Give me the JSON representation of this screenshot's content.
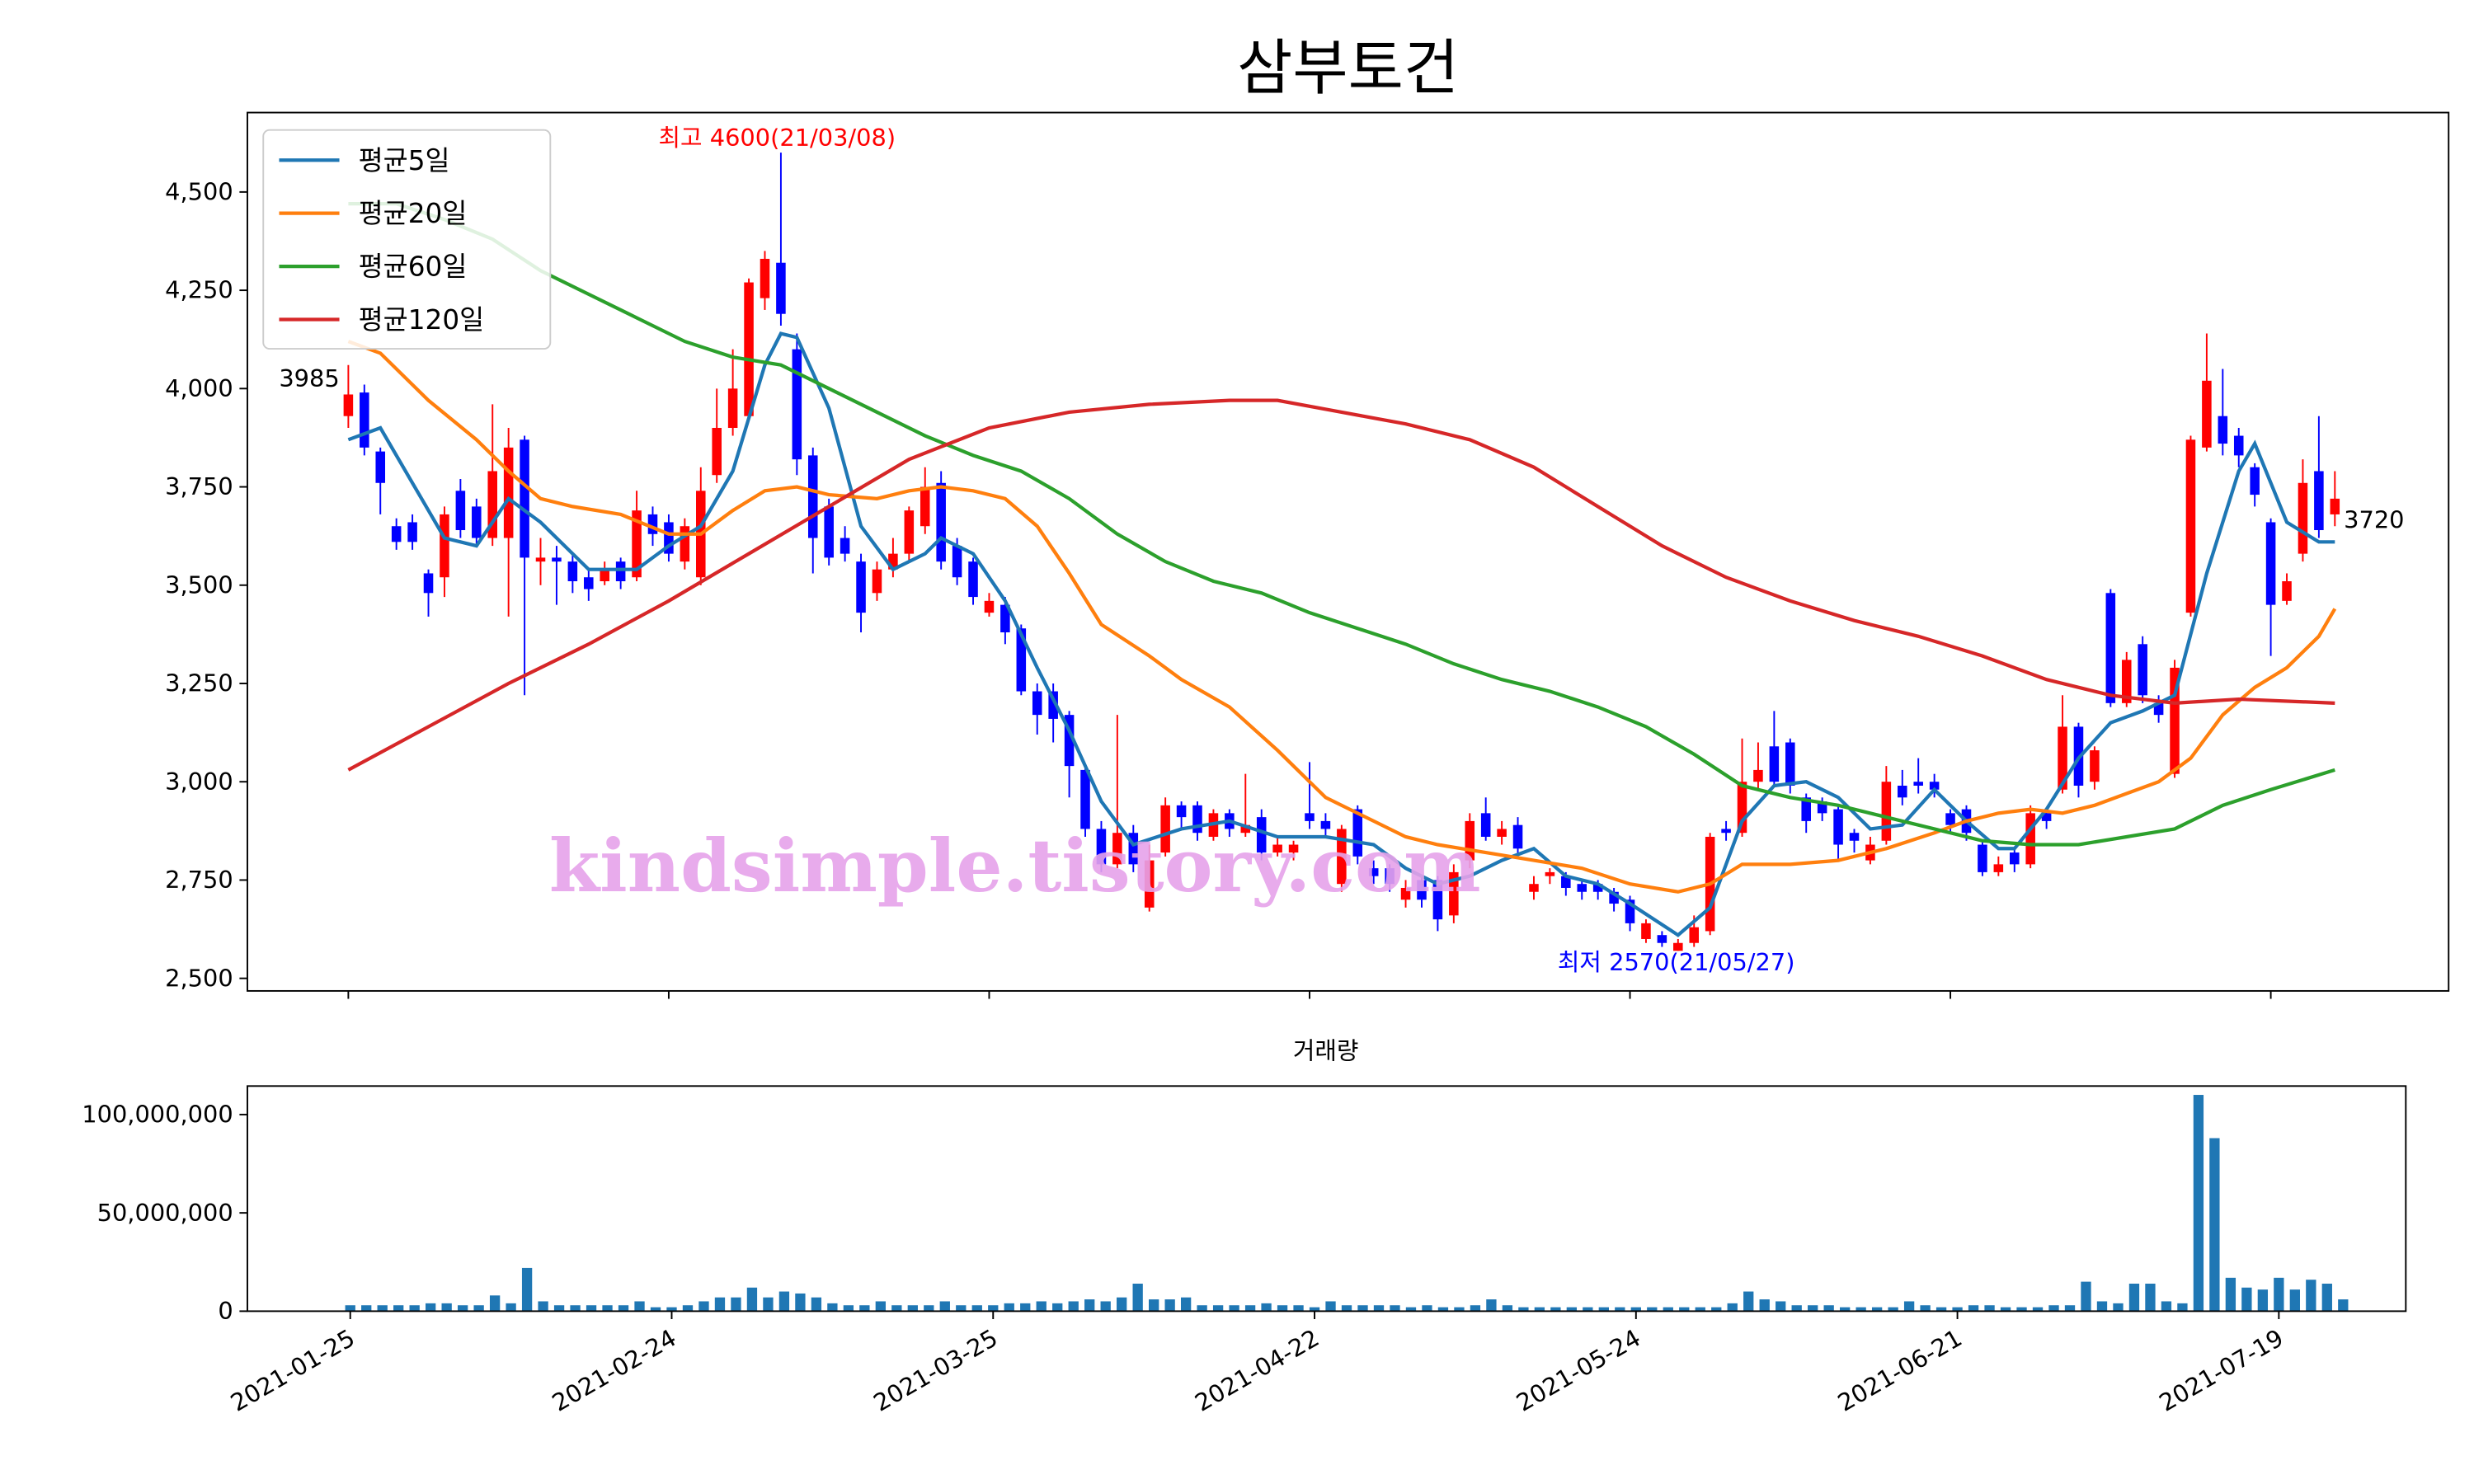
{
  "watermark": "kindsimple.tistory.com",
  "chart_data": [
    {
      "type": "candlestick",
      "title": "삼부토건",
      "up_color": "#ff0000",
      "down_color": "#0000ff",
      "open": [
        3930,
        3990,
        3840,
        3650,
        3660,
        3530,
        3520,
        3740,
        3700,
        3620,
        3620,
        3870,
        3560,
        3570,
        3560,
        3520,
        3510,
        3560,
        3520,
        3680,
        3660,
        3560,
        3520,
        3780,
        3900,
        3930,
        4230,
        4320,
        4100,
        3830,
        3700,
        3620,
        3560,
        3480,
        3540,
        3580,
        3650,
        3760,
        3600,
        3560,
        3430,
        3450,
        3390,
        3230,
        3230,
        3170,
        3030,
        2880,
        2790,
        2870,
        2680,
        2820,
        2940,
        2940,
        2860,
        2920,
        2870,
        2910,
        2820,
        2820,
        2920,
        2900,
        2740,
        2930,
        2780,
        2780,
        2700,
        2750,
        2750,
        2660,
        2800,
        2920,
        2860,
        2890,
        2720,
        2760,
        2760,
        2740,
        2740,
        2720,
        2700,
        2600,
        2610,
        2570,
        2590,
        2620,
        2880,
        2870,
        3000,
        3090,
        3100,
        2960,
        2950,
        2930,
        2870,
        2800,
        2850,
        2990,
        3000,
        3000,
        2920,
        2930,
        2840,
        2770,
        2820,
        2790,
        2920,
        2980,
        3140,
        3000,
        3480,
        3200,
        3350,
        3200,
        3020,
        3430,
        3850,
        3930,
        3880,
        3800,
        3660,
        3460,
        3580,
        3790,
        3680
      ],
      "high": [
        4060,
        4010,
        3850,
        3670,
        3680,
        3540,
        3700,
        3770,
        3720,
        3960,
        3900,
        3880,
        3620,
        3600,
        3580,
        3540,
        3560,
        3570,
        3740,
        3700,
        3680,
        3670,
        3800,
        4000,
        4100,
        4280,
        4350,
        4600,
        4140,
        3850,
        3720,
        3650,
        3580,
        3560,
        3620,
        3700,
        3800,
        3790,
        3620,
        3570,
        3480,
        3470,
        3400,
        3250,
        3250,
        3180,
        3040,
        2900,
        3170,
        2890,
        2840,
        2960,
        2950,
        2950,
        2930,
        2930,
        3020,
        2930,
        2860,
        2850,
        3050,
        2920,
        2890,
        2940,
        2800,
        2790,
        2750,
        2760,
        2760,
        2790,
        2920,
        2960,
        2900,
        2910,
        2760,
        2780,
        2770,
        2750,
        2750,
        2730,
        2710,
        2650,
        2620,
        2600,
        2660,
        2870,
        2900,
        3110,
        3100,
        3180,
        3110,
        2970,
        2960,
        2940,
        2880,
        2860,
        3040,
        3030,
        3060,
        3020,
        2930,
        2940,
        2850,
        2810,
        2830,
        2940,
        2930,
        3220,
        3150,
        3090,
        3490,
        3330,
        3370,
        3220,
        3310,
        3880,
        4140,
        4050,
        3900,
        3810,
        3670,
        3530,
        3820,
        3930,
        3790
      ],
      "low": [
        3900,
        3830,
        3680,
        3590,
        3590,
        3420,
        3470,
        3620,
        3600,
        3600,
        3420,
        3220,
        3500,
        3450,
        3480,
        3460,
        3500,
        3490,
        3510,
        3600,
        3560,
        3540,
        3500,
        3760,
        3880,
        3920,
        4200,
        4160,
        3780,
        3530,
        3550,
        3560,
        3380,
        3460,
        3520,
        3560,
        3630,
        3540,
        3500,
        3450,
        3420,
        3350,
        3220,
        3120,
        3100,
        2960,
        2860,
        2770,
        2780,
        2770,
        2670,
        2810,
        2880,
        2850,
        2850,
        2860,
        2860,
        2800,
        2810,
        2800,
        2880,
        2860,
        2720,
        2790,
        2740,
        2720,
        2680,
        2680,
        2620,
        2640,
        2780,
        2850,
        2840,
        2810,
        2700,
        2740,
        2710,
        2700,
        2700,
        2670,
        2620,
        2590,
        2580,
        2570,
        2580,
        2610,
        2850,
        2860,
        2980,
        2990,
        2970,
        2870,
        2900,
        2800,
        2820,
        2790,
        2840,
        2940,
        2970,
        2960,
        2870,
        2850,
        2760,
        2760,
        2770,
        2780,
        2880,
        2970,
        2960,
        2980,
        3190,
        3190,
        3200,
        3150,
        3010,
        3420,
        3840,
        3830,
        3800,
        3700,
        3320,
        3450,
        3560,
        3620,
        3650
      ],
      "close": [
        3985,
        3850,
        3760,
        3610,
        3610,
        3480,
        3680,
        3640,
        3620,
        3790,
        3850,
        3570,
        3570,
        3560,
        3510,
        3490,
        3540,
        3510,
        3690,
        3630,
        3580,
        3650,
        3740,
        3900,
        4000,
        4270,
        4330,
        4190,
        3820,
        3620,
        3570,
        3580,
        3430,
        3540,
        3580,
        3690,
        3750,
        3560,
        3520,
        3470,
        3460,
        3380,
        3230,
        3170,
        3160,
        3040,
        2880,
        2790,
        2870,
        2790,
        2800,
        2940,
        2910,
        2870,
        2920,
        2880,
        2890,
        2820,
        2840,
        2840,
        2900,
        2880,
        2880,
        2810,
        2760,
        2740,
        2730,
        2700,
        2650,
        2770,
        2900,
        2860,
        2880,
        2830,
        2740,
        2770,
        2730,
        2720,
        2720,
        2690,
        2640,
        2640,
        2590,
        2590,
        2630,
        2860,
        2870,
        3000,
        3030,
        3000,
        2990,
        2900,
        2920,
        2840,
        2850,
        2840,
        3000,
        2960,
        2990,
        2980,
        2890,
        2870,
        2770,
        2790,
        2790,
        2920,
        2900,
        3140,
        2990,
        3080,
        3200,
        3310,
        3220,
        3170,
        3290,
        3870,
        4020,
        3860,
        3830,
        3730,
        3450,
        3510,
        3760,
        3640,
        3720
      ],
      "series": [
        {
          "name": "평균5일",
          "color": "#1f77b4",
          "x": [
            0,
            2,
            4,
            6,
            8,
            10,
            12,
            14,
            15,
            18,
            20,
            22,
            24,
            26,
            27,
            28,
            30,
            32,
            34,
            36,
            37,
            39,
            41,
            43,
            45,
            47,
            49,
            52,
            55,
            58,
            61,
            64,
            66,
            68,
            70,
            72,
            74,
            76,
            78,
            80,
            83,
            85,
            87,
            89,
            91,
            93,
            95,
            97,
            99,
            101,
            103,
            104,
            106,
            108,
            110,
            112,
            114,
            116,
            118,
            119,
            121,
            123,
            124
          ],
          "values": [
            3870,
            3900,
            3760,
            3620,
            3600,
            3720,
            3660,
            3580,
            3540,
            3540,
            3600,
            3650,
            3790,
            4060,
            4140,
            4130,
            3950,
            3650,
            3540,
            3580,
            3620,
            3580,
            3460,
            3290,
            3130,
            2950,
            2840,
            2880,
            2900,
            2860,
            2860,
            2840,
            2780,
            2740,
            2760,
            2800,
            2830,
            2760,
            2740,
            2690,
            2610,
            2680,
            2900,
            2990,
            3000,
            2960,
            2880,
            2890,
            2980,
            2900,
            2830,
            2830,
            2930,
            3060,
            3150,
            3180,
            3220,
            3530,
            3790,
            3860,
            3660,
            3610,
            3610
          ]
        },
        {
          "name": "평균20일",
          "color": "#ff7f0e",
          "x": [
            0,
            2,
            5,
            8,
            10,
            12,
            14,
            17,
            20,
            22,
            24,
            26,
            28,
            30,
            33,
            35,
            37,
            39,
            41,
            43,
            45,
            47,
            50,
            52,
            55,
            58,
            61,
            64,
            66,
            68,
            71,
            74,
            77,
            80,
            83,
            85,
            87,
            90,
            93,
            96,
            99,
            101,
            103,
            105,
            107,
            109,
            111,
            113,
            115,
            117,
            119,
            121,
            123,
            124
          ],
          "values": [
            4120,
            4090,
            3970,
            3870,
            3790,
            3720,
            3700,
            3680,
            3630,
            3630,
            3690,
            3740,
            3750,
            3730,
            3720,
            3740,
            3750,
            3740,
            3720,
            3650,
            3530,
            3400,
            3320,
            3260,
            3190,
            3080,
            2960,
            2900,
            2860,
            2840,
            2820,
            2800,
            2780,
            2740,
            2720,
            2740,
            2790,
            2790,
            2800,
            2830,
            2870,
            2900,
            2920,
            2930,
            2920,
            2940,
            2970,
            3000,
            3060,
            3170,
            3240,
            3290,
            3370,
            3440
          ]
        },
        {
          "name": "평균60일",
          "color": "#2ca02c",
          "x": [
            0,
            3,
            6,
            9,
            12,
            15,
            18,
            21,
            24,
            27,
            30,
            33,
            36,
            39,
            42,
            45,
            48,
            51,
            54,
            57,
            60,
            63,
            66,
            69,
            72,
            75,
            78,
            81,
            84,
            87,
            90,
            93,
            96,
            99,
            102,
            105,
            108,
            111,
            114,
            117,
            120,
            124
          ],
          "values": [
            4470,
            4470,
            4430,
            4380,
            4300,
            4240,
            4180,
            4120,
            4080,
            4060,
            4000,
            3940,
            3880,
            3830,
            3790,
            3720,
            3630,
            3560,
            3510,
            3480,
            3430,
            3390,
            3350,
            3300,
            3260,
            3230,
            3190,
            3140,
            3070,
            2990,
            2960,
            2940,
            2910,
            2880,
            2850,
            2840,
            2840,
            2860,
            2880,
            2940,
            2980,
            3030
          ]
        },
        {
          "name": "평균120일",
          "color": "#d62728",
          "x": [
            0,
            5,
            10,
            15,
            20,
            25,
            30,
            35,
            40,
            45,
            50,
            55,
            58,
            62,
            66,
            70,
            74,
            78,
            82,
            86,
            90,
            94,
            98,
            102,
            106,
            110,
            114,
            118,
            124
          ],
          "values": [
            3030,
            3140,
            3250,
            3350,
            3460,
            3580,
            3700,
            3820,
            3900,
            3940,
            3960,
            3970,
            3970,
            3940,
            3910,
            3870,
            3800,
            3700,
            3600,
            3520,
            3460,
            3410,
            3370,
            3320,
            3260,
            3220,
            3200,
            3210,
            3200
          ]
        }
      ],
      "legend": "upper left",
      "annotations": [
        "최고 4600(21/03/08)",
        "최저 2570(21/05/27)",
        "3985",
        "3720"
      ],
      "xlim": [
        -6.3,
        131.1
      ],
      "ylim": [
        2468,
        4702
      ],
      "yticks": [
        {
          "value": 2500,
          "label": "2,500"
        },
        {
          "value": 2750,
          "label": "2,750"
        },
        {
          "value": 3000,
          "label": "3,000"
        },
        {
          "value": 3250,
          "label": "3,250"
        },
        {
          "value": 3500,
          "label": "3,500"
        },
        {
          "value": 3750,
          "label": "3,750"
        },
        {
          "value": 4000,
          "label": "4,000"
        },
        {
          "value": 4250,
          "label": "4,250"
        },
        {
          "value": 4500,
          "label": "4,500"
        }
      ]
    },
    {
      "type": "bar",
      "title": "거래량",
      "color": "#1f77b4",
      "values": [
        3000000,
        3000000,
        3000000,
        3000000,
        3000000,
        4000000,
        4000000,
        3000000,
        3000000,
        8000000,
        4000000,
        22000000,
        5000000,
        3000000,
        3000000,
        3000000,
        3000000,
        3000000,
        5000000,
        2000000,
        2000000,
        3000000,
        5000000,
        7000000,
        7000000,
        12000000,
        7000000,
        10000000,
        9000000,
        7000000,
        4000000,
        3000000,
        3000000,
        5000000,
        3000000,
        3000000,
        3000000,
        5000000,
        3000000,
        3000000,
        3000000,
        4000000,
        4000000,
        5000000,
        4000000,
        5000000,
        6000000,
        5000000,
        7000000,
        14000000,
        6000000,
        6000000,
        7000000,
        3000000,
        3000000,
        3000000,
        3000000,
        4000000,
        3000000,
        3000000,
        2000000,
        5000000,
        3000000,
        3000000,
        3000000,
        3000000,
        2000000,
        3000000,
        2000000,
        2000000,
        3000000,
        6000000,
        3000000,
        2000000,
        2000000,
        2000000,
        2000000,
        2000000,
        2000000,
        2000000,
        2000000,
        2000000,
        2000000,
        2000000,
        2000000,
        2000000,
        4000000,
        10000000,
        6000000,
        5000000,
        3000000,
        3000000,
        3000000,
        2000000,
        2000000,
        2000000,
        2000000,
        5000000,
        3000000,
        2000000,
        2000000,
        3000000,
        3000000,
        2000000,
        2000000,
        2000000,
        3000000,
        3000000,
        15000000,
        5000000,
        4000000,
        14000000,
        14000000,
        5000000,
        4000000,
        110000000,
        88000000,
        17000000,
        12000000,
        11000000,
        17000000,
        11000000,
        16000000,
        14000000,
        6000000
      ],
      "xlim": [
        -6.4,
        127.9
      ],
      "ylim": [
        0,
        114500000
      ],
      "yticks": [
        0,
        {
          "value": 50000000,
          "label": "50,000,000"
        },
        {
          "value": 100000000,
          "label": "100,000,000"
        }
      ],
      "xticks": [
        {
          "value": 0,
          "label": "2021-01-25"
        },
        {
          "value": 20,
          "label": "2021-02-24"
        },
        {
          "value": 40,
          "label": "2021-03-25"
        },
        {
          "value": 60,
          "label": "2021-04-22"
        },
        {
          "value": 80,
          "label": "2021-05-24"
        },
        {
          "value": 100,
          "label": "2021-06-21"
        },
        {
          "value": 120,
          "label": "2021-07-19"
        }
      ]
    }
  ]
}
